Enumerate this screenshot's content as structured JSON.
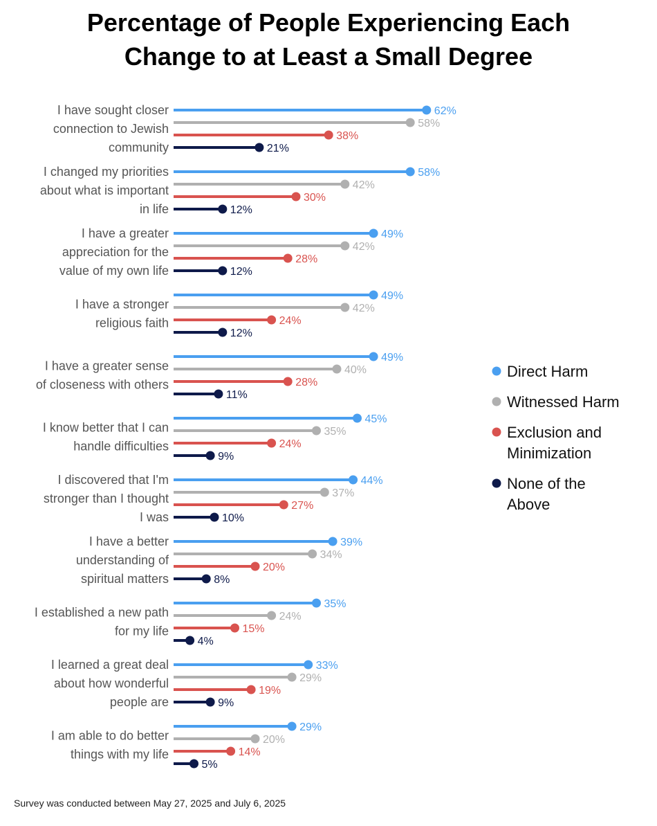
{
  "chart_data": {
    "type": "lollipop",
    "title_lines": [
      "Percentage of People Experiencing Each",
      "Change to at Least a Small Degree"
    ],
    "footnote": "Survey was conducted between May 27, 2025 and July 6, 2025",
    "xlim": [
      0,
      100
    ],
    "value_suffix": "%",
    "legend_position": "right",
    "series": [
      {
        "name": "Direct Harm",
        "color": "#4a9ff0",
        "values": [
          62,
          58,
          49,
          49,
          49,
          45,
          44,
          39,
          35,
          33,
          29
        ]
      },
      {
        "name": "Witnessed Harm",
        "color": "#b0b0b0",
        "values": [
          58,
          42,
          42,
          42,
          40,
          35,
          37,
          34,
          24,
          29,
          20
        ]
      },
      {
        "name": "Exclusion and Minimization",
        "color": "#d9534f",
        "values": [
          38,
          30,
          28,
          24,
          28,
          24,
          27,
          20,
          15,
          19,
          14
        ]
      },
      {
        "name": "None of the Above",
        "color": "#0e1a4a",
        "values": [
          21,
          12,
          12,
          12,
          11,
          9,
          10,
          8,
          4,
          9,
          5
        ]
      }
    ],
    "categories": [
      {
        "lines": [
          "I have sought closer",
          "connection to Jewish",
          "community"
        ]
      },
      {
        "lines": [
          "I changed my priorities",
          "about what is important",
          "in life"
        ]
      },
      {
        "lines": [
          "I have a greater",
          "appreciation for the",
          "value of my own life"
        ]
      },
      {
        "lines": [
          "I have a stronger",
          "religious faith"
        ]
      },
      {
        "lines": [
          "I have a greater sense",
          "of closeness with others"
        ]
      },
      {
        "lines": [
          "I know better that I can",
          "handle difficulties"
        ]
      },
      {
        "lines": [
          "I discovered that I'm",
          "stronger than I thought",
          "I was"
        ]
      },
      {
        "lines": [
          "I have a better",
          "understanding of",
          "spiritual matters"
        ]
      },
      {
        "lines": [
          "I established a new path",
          "for my life"
        ]
      },
      {
        "lines": [
          "I learned a great deal",
          "about how wonderful",
          "people are"
        ]
      },
      {
        "lines": [
          "I am able to do better",
          "things with my life"
        ]
      }
    ],
    "legend_lines": [
      [
        "Direct Harm"
      ],
      [
        "Witnessed Harm"
      ],
      [
        "Exclusion and",
        "Minimization"
      ],
      [
        "None of the",
        "Above"
      ]
    ]
  }
}
